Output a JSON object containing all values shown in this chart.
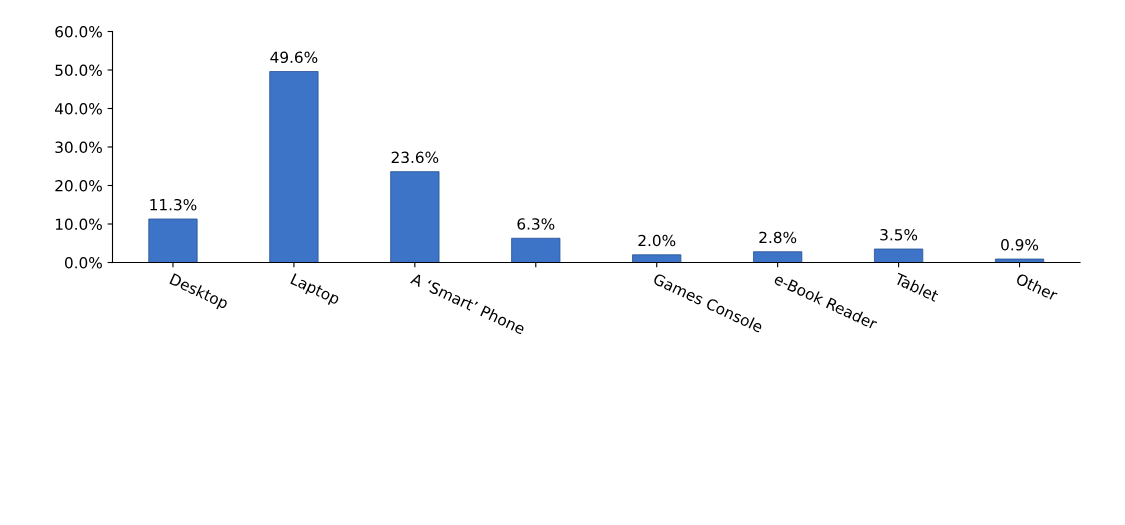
{
  "chart_data": {
    "type": "bar",
    "categories": [
      "Desktop",
      "Laptop",
      "A ‘Smart’ Phone",
      null,
      "Games Console",
      "e-Book Reader",
      "Tablet",
      "Other"
    ],
    "values": [
      11.3,
      49.6,
      23.6,
      6.3,
      2.0,
      2.8,
      3.5,
      0.9
    ],
    "value_labels": [
      "11.3%",
      "49.6%",
      "23.6%",
      "6.3%",
      "2.0%",
      "2.8%",
      "3.5%",
      "0.9%"
    ],
    "color": "#3d74c8",
    "ylim": [
      0,
      60
    ],
    "yticks": [
      {
        "value": 0,
        "label": "0.0%"
      },
      {
        "value": 10,
        "label": "10.0%"
      },
      {
        "value": 20,
        "label": "20.0%"
      },
      {
        "value": 30,
        "label": "30.0%"
      },
      {
        "value": 40,
        "label": "40.0%"
      },
      {
        "value": 50,
        "label": "50.0%"
      },
      {
        "value": 60,
        "label": "60.0%"
      }
    ],
    "grid": false,
    "legend": false
  }
}
